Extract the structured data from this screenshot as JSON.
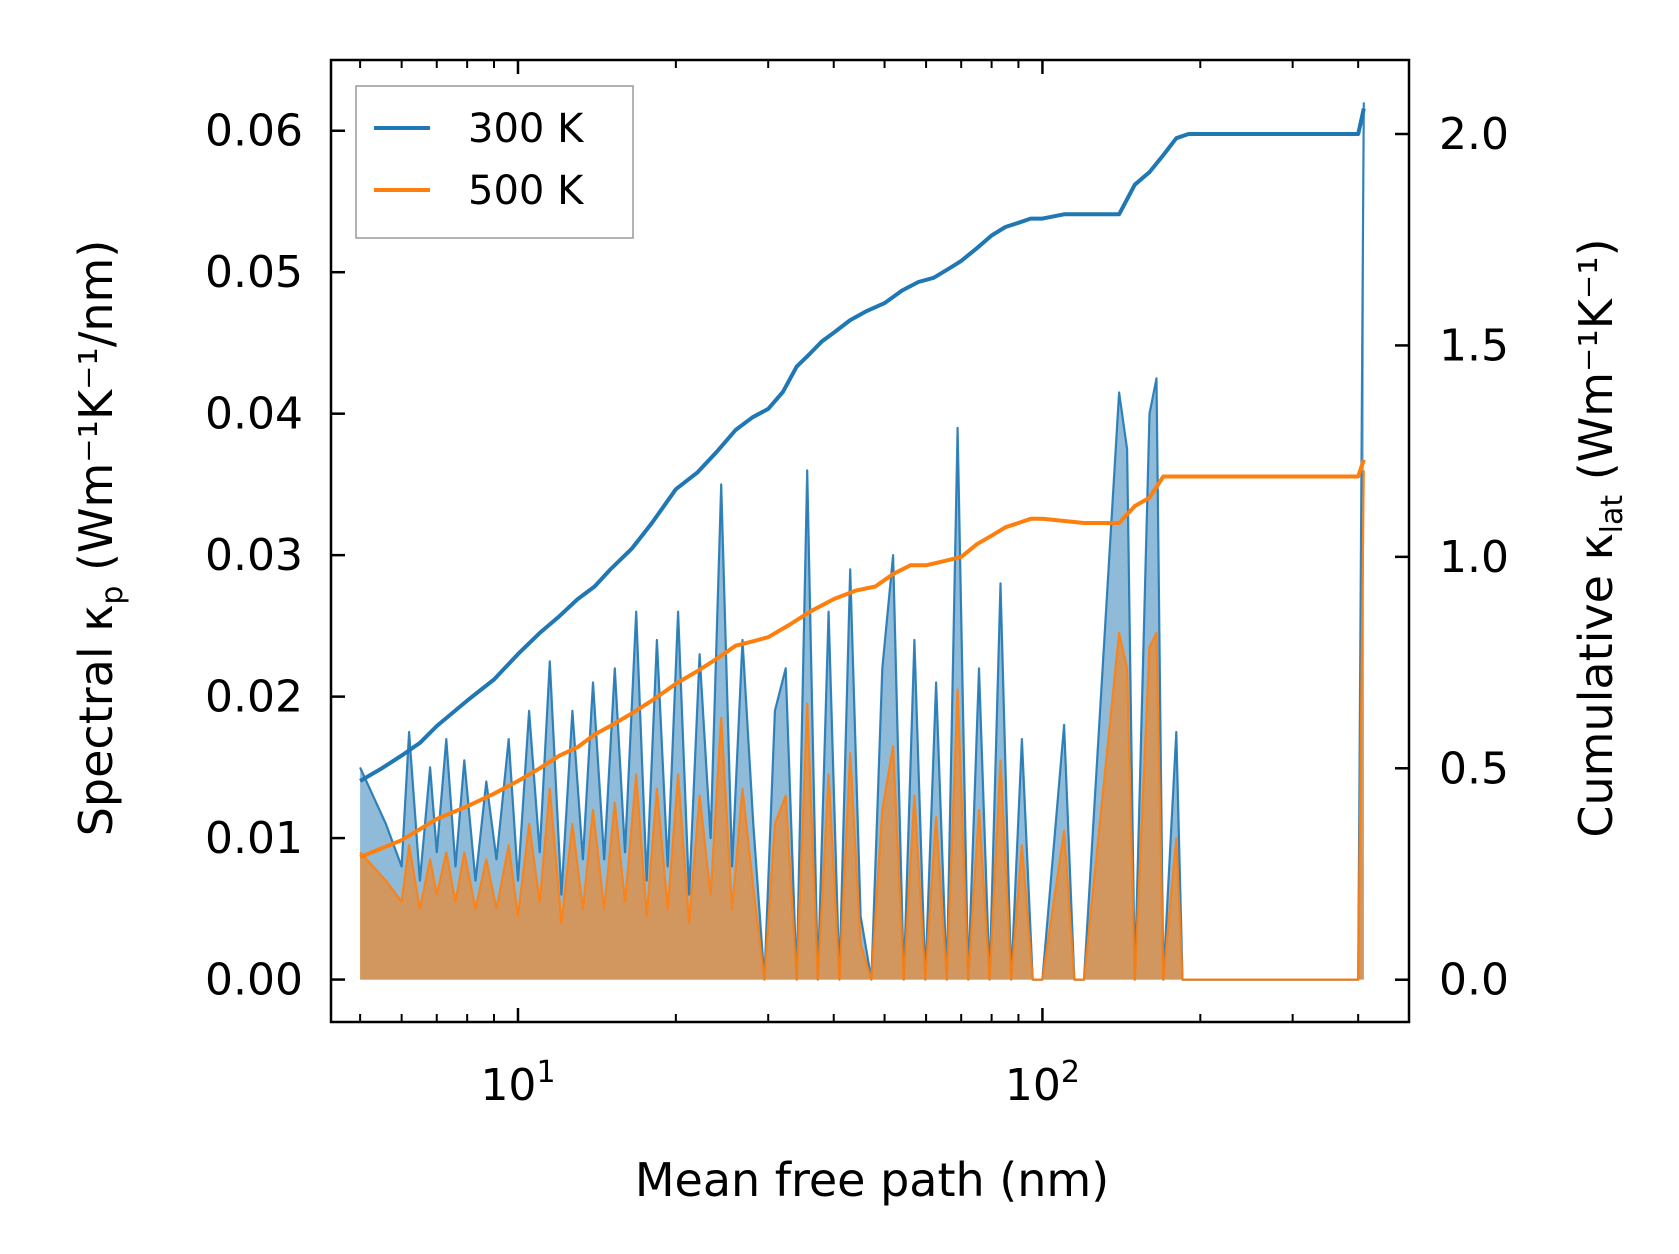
{
  "chart_data": {
    "type": "line",
    "xlabel": "Mean free path (nm)",
    "ylabel": "Spectral κp (Wm⁻¹K⁻¹/nm)",
    "y2label": "Cumulative κlat (Wm⁻¹K⁻¹)",
    "xscale": "log",
    "xlim": [
      4.4,
      500
    ],
    "ylim": [
      -0.003,
      0.065
    ],
    "y2lim": [
      -0.1,
      2.175
    ],
    "xticks": [
      {
        "value": 10,
        "base": "10",
        "exp": "1"
      },
      {
        "value": 100,
        "base": "10",
        "exp": "2"
      }
    ],
    "yticks": [
      "0.00",
      "0.01",
      "0.02",
      "0.03",
      "0.04",
      "0.05",
      "0.06"
    ],
    "y2ticks": [
      "0.0",
      "0.5",
      "1.0",
      "1.5",
      "2.0"
    ],
    "legend_position": "top-left",
    "series": [
      {
        "name": "300 K",
        "color": "#1f77b4",
        "spectral": {
          "x": [
            5.0,
            5.6,
            6.0,
            6.2,
            6.5,
            6.8,
            7.0,
            7.3,
            7.6,
            7.9,
            8.3,
            8.7,
            9.1,
            9.6,
            10.0,
            10.5,
            11.0,
            11.5,
            12.1,
            12.7,
            13.3,
            13.9,
            14.6,
            15.3,
            16.0,
            16.8,
            17.6,
            18.4,
            19.3,
            20.2,
            21.2,
            22.2,
            23.3,
            24.4,
            25.6,
            26.8,
            28.1,
            29.5,
            30.9,
            32.4,
            34.0,
            35.6,
            37.3,
            39.1,
            41.0,
            43.0,
            45.0,
            47.2,
            49.5,
            51.9,
            54.4,
            57.0,
            59.8,
            62.7,
            65.7,
            68.9,
            72.2,
            75.7,
            79.3,
            83.2,
            87.2,
            91.4,
            95.8,
            100.0,
            110.0,
            115.0,
            120.0,
            140.0,
            145.0,
            150.0,
            160.0,
            165.0,
            170.0,
            180.0,
            185.0,
            190.0,
            400.0,
            410.0
          ],
          "y": [
            0.015,
            0.011,
            0.008,
            0.0175,
            0.007,
            0.015,
            0.009,
            0.017,
            0.008,
            0.0155,
            0.007,
            0.014,
            0.0085,
            0.017,
            0.007,
            0.019,
            0.009,
            0.0225,
            0.006,
            0.019,
            0.0085,
            0.021,
            0.0085,
            0.022,
            0.009,
            0.026,
            0.007,
            0.024,
            0.008,
            0.026,
            0.006,
            0.023,
            0.01,
            0.035,
            0.008,
            0.024,
            0.011,
            0.0,
            0.019,
            0.022,
            0.0,
            0.036,
            0.0,
            0.026,
            0.0,
            0.029,
            0.0045,
            0.0,
            0.022,
            0.03,
            0.0,
            0.024,
            0.0,
            0.021,
            0.0,
            0.039,
            0.0,
            0.022,
            0.0,
            0.028,
            0.0,
            0.017,
            0.0,
            0.0,
            0.018,
            0.0,
            0.0,
            0.0415,
            0.0375,
            0.0,
            0.04,
            0.0425,
            0.0,
            0.0175,
            0.0,
            0.0,
            0.0,
            0.062
          ]
        },
        "cumulative": {
          "x": [
            5.0,
            5.5,
            6.0,
            6.5,
            7.0,
            8.0,
            9.0,
            10.0,
            11.0,
            12.0,
            13.0,
            14.0,
            15.0,
            16.5,
            18.0,
            20.0,
            22.0,
            24.0,
            26.0,
            28.0,
            30.0,
            32.0,
            34.0,
            36.0,
            38.0,
            40.0,
            43.0,
            46.0,
            50.0,
            54.0,
            58.0,
            62.0,
            66.0,
            70.0,
            75.0,
            80.0,
            85.0,
            90.0,
            95.0,
            100.0,
            110.0,
            120.0,
            140.0,
            150.0,
            160.0,
            170.0,
            180.0,
            190.0,
            400.0,
            410.0
          ],
          "y": [
            0.47,
            0.5,
            0.53,
            0.56,
            0.6,
            0.66,
            0.71,
            0.77,
            0.82,
            0.86,
            0.9,
            0.93,
            0.97,
            1.02,
            1.08,
            1.16,
            1.2,
            1.25,
            1.3,
            1.33,
            1.35,
            1.39,
            1.45,
            1.48,
            1.51,
            1.53,
            1.56,
            1.58,
            1.6,
            1.63,
            1.65,
            1.66,
            1.68,
            1.7,
            1.73,
            1.76,
            1.78,
            1.79,
            1.8,
            1.8,
            1.81,
            1.81,
            1.81,
            1.88,
            1.91,
            1.95,
            1.99,
            2.0,
            2.0,
            2.06
          ]
        }
      },
      {
        "name": "500 K",
        "color": "#ff7f0e",
        "spectral": {
          "x": [
            5.0,
            5.6,
            6.0,
            6.2,
            6.5,
            6.8,
            7.0,
            7.3,
            7.6,
            7.9,
            8.3,
            8.7,
            9.1,
            9.6,
            10.0,
            10.5,
            11.0,
            11.5,
            12.1,
            12.7,
            13.3,
            13.9,
            14.6,
            15.3,
            16.0,
            16.8,
            17.6,
            18.4,
            19.3,
            20.2,
            21.2,
            22.2,
            23.3,
            24.4,
            25.6,
            26.8,
            28.1,
            29.5,
            30.9,
            32.4,
            34.0,
            35.6,
            37.3,
            39.1,
            41.0,
            43.0,
            45.0,
            47.2,
            49.5,
            51.9,
            54.4,
            57.0,
            59.8,
            62.7,
            65.7,
            68.9,
            72.2,
            75.7,
            79.3,
            83.2,
            87.2,
            91.4,
            95.8,
            100.0,
            110.0,
            115.0,
            120.0,
            140.0,
            145.0,
            150.0,
            160.0,
            165.0,
            170.0,
            180.0,
            185.0,
            190.0,
            400.0,
            410.0
          ],
          "y": [
            0.009,
            0.007,
            0.0055,
            0.0095,
            0.005,
            0.0085,
            0.006,
            0.009,
            0.0055,
            0.009,
            0.005,
            0.0085,
            0.005,
            0.0095,
            0.0045,
            0.011,
            0.0055,
            0.0135,
            0.004,
            0.011,
            0.005,
            0.012,
            0.005,
            0.0125,
            0.0055,
            0.0145,
            0.0045,
            0.0135,
            0.005,
            0.0145,
            0.004,
            0.013,
            0.006,
            0.0185,
            0.005,
            0.0135,
            0.0065,
            0.0,
            0.011,
            0.013,
            0.0,
            0.0195,
            0.0,
            0.0145,
            0.0,
            0.016,
            0.0025,
            0.0,
            0.012,
            0.0165,
            0.0,
            0.013,
            0.0,
            0.0115,
            0.0,
            0.0205,
            0.0,
            0.012,
            0.0,
            0.0155,
            0.0,
            0.0095,
            0.0,
            0.0,
            0.0105,
            0.0,
            0.0,
            0.0245,
            0.022,
            0.0,
            0.0235,
            0.0245,
            0.0,
            0.01,
            0.0,
            0.0,
            0.0,
            0.036
          ]
        },
        "cumulative": {
          "x": [
            5.0,
            6.0,
            7.0,
            8.0,
            9.0,
            10.0,
            11.0,
            12.0,
            13.0,
            14.0,
            15.0,
            16.5,
            18.0,
            20.0,
            22.0,
            24.0,
            26.0,
            28.0,
            30.0,
            33.0,
            36.0,
            40.0,
            44.0,
            48.0,
            52.0,
            56.0,
            60.0,
            65.0,
            70.0,
            75.0,
            80.0,
            85.0,
            90.0,
            95.0,
            100.0,
            120.0,
            140.0,
            150.0,
            160.0,
            170.0,
            190.0,
            400.0,
            410.0
          ],
          "y": [
            0.29,
            0.33,
            0.38,
            0.41,
            0.44,
            0.47,
            0.5,
            0.53,
            0.55,
            0.58,
            0.6,
            0.63,
            0.66,
            0.7,
            0.73,
            0.76,
            0.79,
            0.8,
            0.81,
            0.84,
            0.87,
            0.9,
            0.92,
            0.93,
            0.96,
            0.98,
            0.98,
            0.99,
            1.0,
            1.03,
            1.05,
            1.07,
            1.08,
            1.09,
            1.09,
            1.08,
            1.08,
            1.12,
            1.14,
            1.19,
            1.19,
            1.19,
            1.23
          ]
        }
      }
    ]
  }
}
